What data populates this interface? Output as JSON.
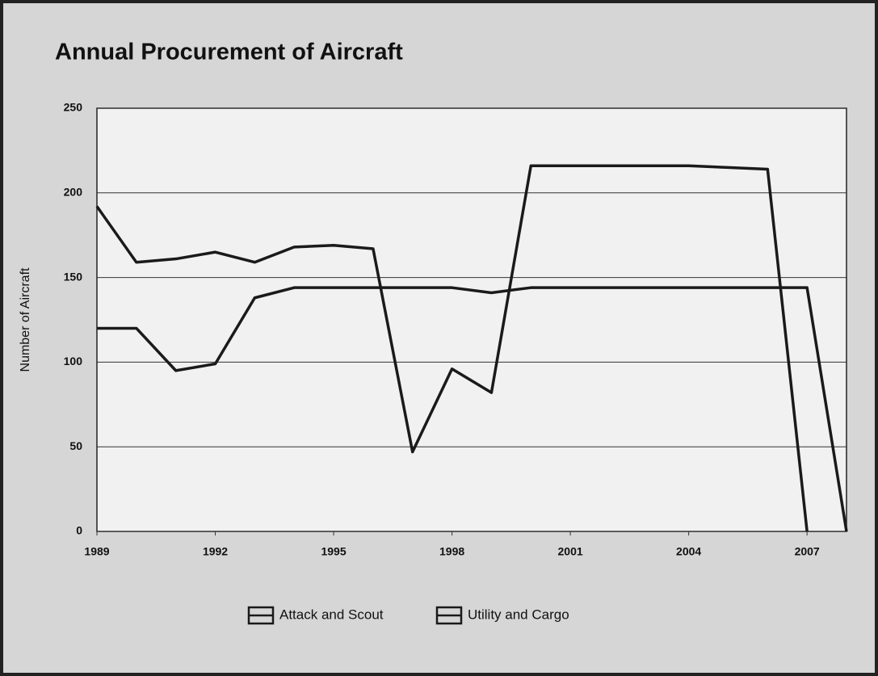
{
  "chart_data": {
    "type": "line",
    "title": "Annual Procurement of Aircraft",
    "ylabel": "Number of Aircraft",
    "x": [
      1989,
      1990,
      1991,
      1992,
      1993,
      1994,
      1995,
      1996,
      1997,
      1998,
      1999,
      2000,
      2001,
      2002,
      2003,
      2004,
      2005,
      2006,
      2007,
      2008
    ],
    "series": [
      {
        "name": "Attack and Scout",
        "color": "#1a1a1a",
        "values": [
          192,
          159,
          161,
          165,
          159,
          168,
          169,
          167,
          47,
          96,
          82,
          216,
          216,
          216,
          216,
          216,
          215,
          214,
          0,
          null
        ]
      },
      {
        "name": "Utility and Cargo",
        "color": "#1a1a1a",
        "values": [
          120,
          120,
          95,
          99,
          138,
          144,
          144,
          144,
          144,
          144,
          141,
          144,
          144,
          144,
          144,
          144,
          144,
          144,
          144,
          0
        ]
      }
    ],
    "xlim": [
      1989,
      2008
    ],
    "xticks": [
      1989,
      1992,
      1995,
      1998,
      2001,
      2004,
      2007
    ],
    "ylim": [
      0,
      250
    ],
    "yticks": [
      0,
      50,
      100,
      150,
      200,
      250
    ],
    "grid": true,
    "legend": "bottom"
  }
}
